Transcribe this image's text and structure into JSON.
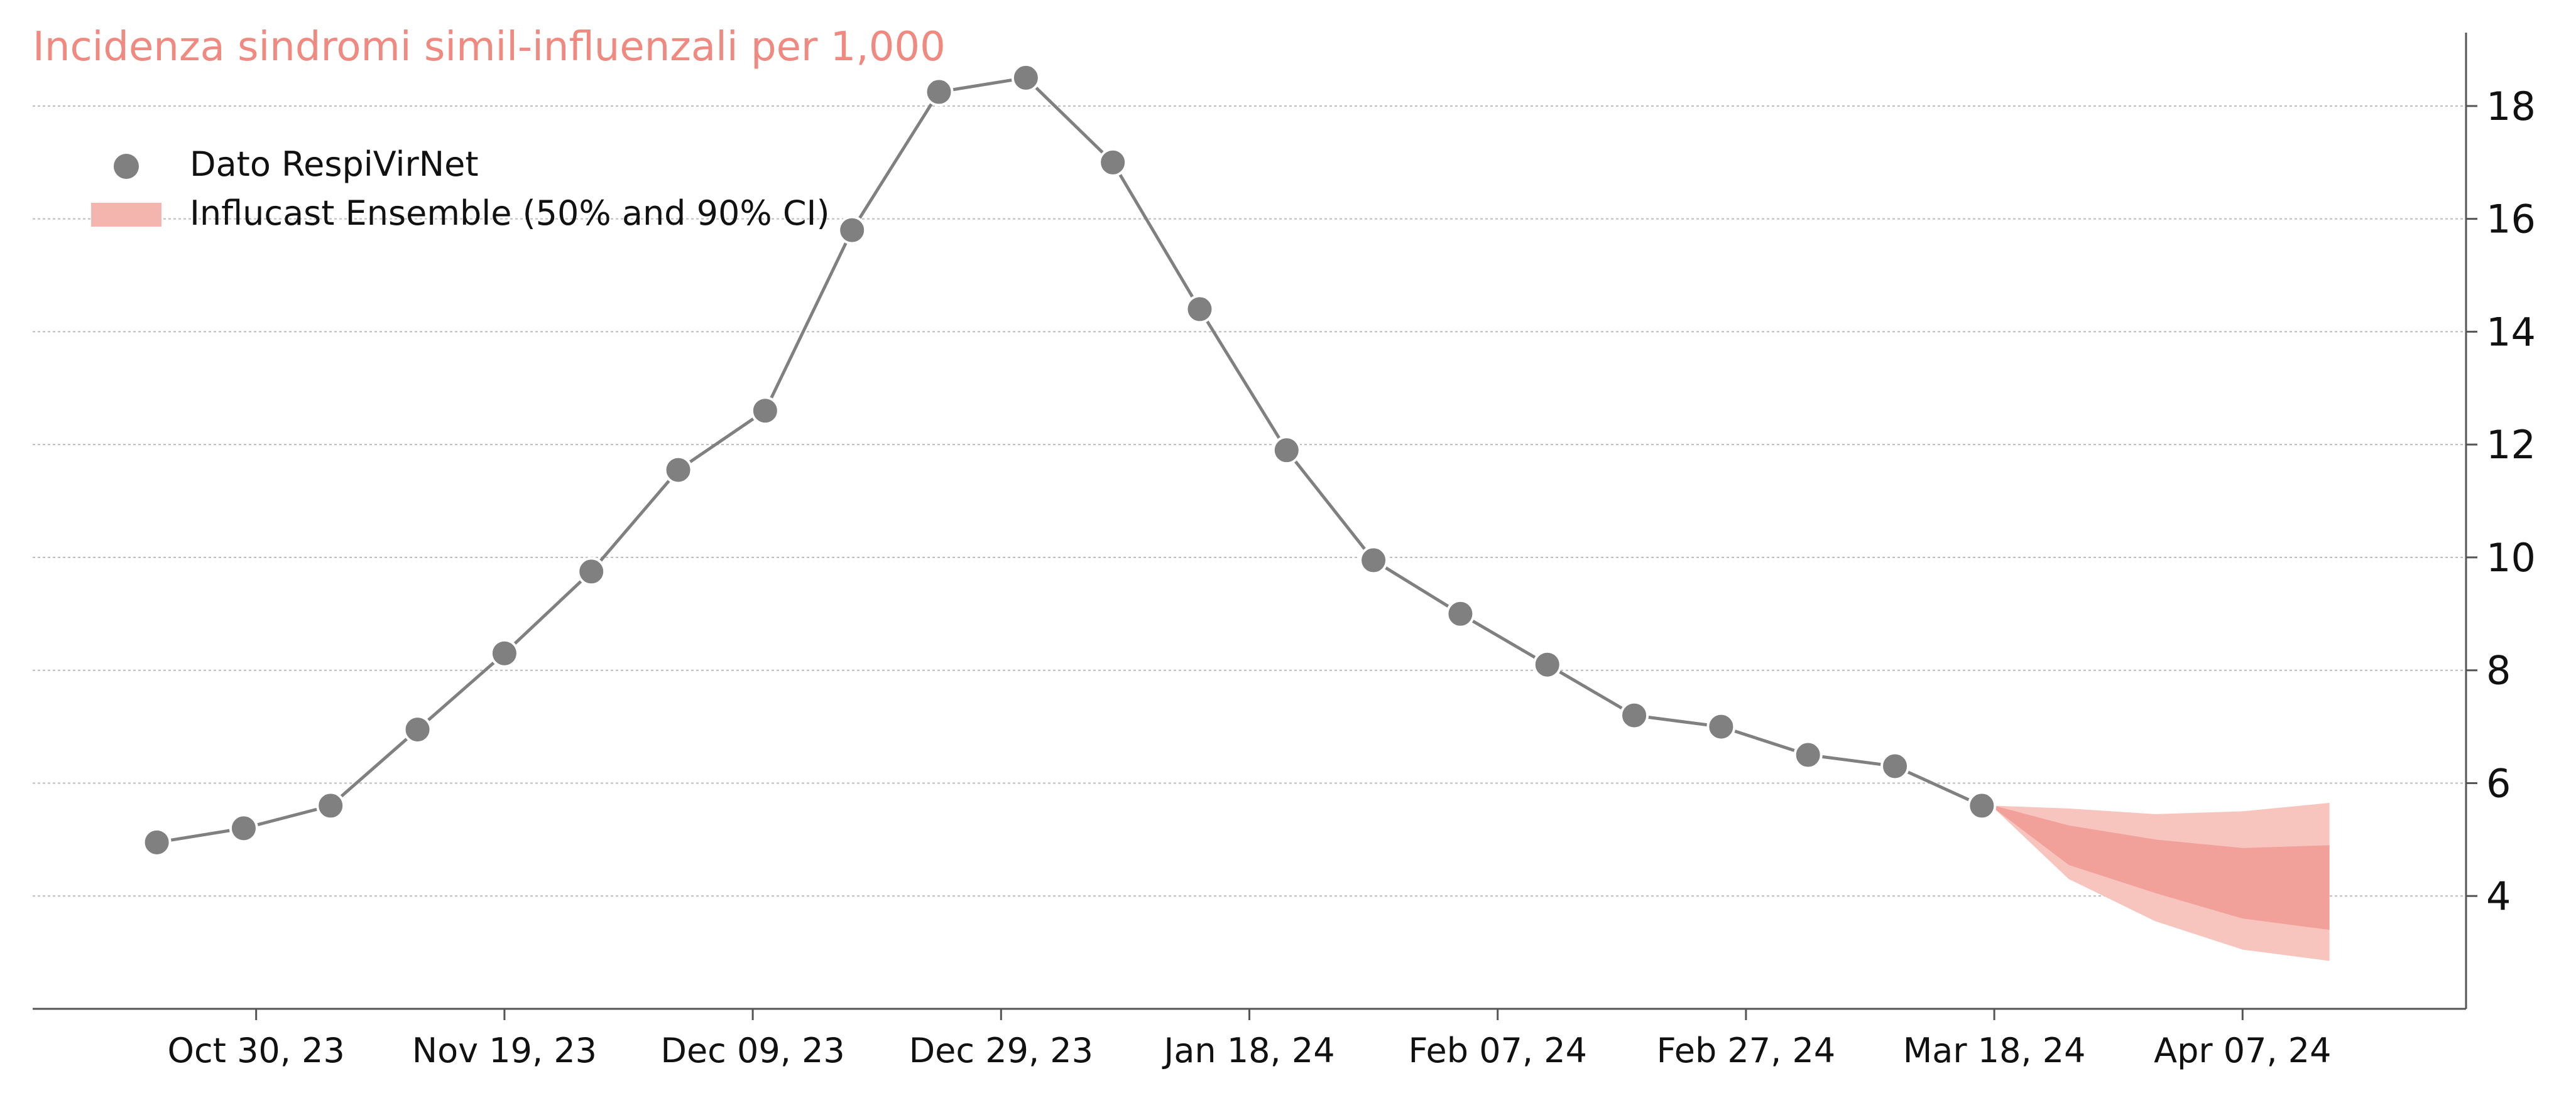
{
  "chart_data": {
    "type": "line",
    "title": "Incidenza sindromi simil-influenzali per 1,000",
    "xlabel": "",
    "ylabel": "",
    "x_ticks": [
      "Oct 30, 23",
      "Nov 19, 23",
      "Dec 09, 23",
      "Dec 29, 23",
      "Jan 18, 24",
      "Feb 07, 24",
      "Feb 27, 24",
      "Mar 18, 24",
      "Apr 07, 24"
    ],
    "y_ticks": [
      4,
      6,
      8,
      10,
      12,
      14,
      16,
      18
    ],
    "xlim": [
      "2023-10-12",
      "2024-04-25"
    ],
    "ylim": [
      2.0,
      19.3
    ],
    "y_axis_side": "right",
    "grid": "horizontal-dotted",
    "legend_position": "top-left",
    "series": [
      {
        "name": "Dato RespiVirNet",
        "kind": "points-with-line",
        "color": "#808080",
        "points": [
          {
            "x": "2023-10-22",
            "y": 4.95
          },
          {
            "x": "2023-10-29",
            "y": 5.2
          },
          {
            "x": "2023-11-05",
            "y": 5.6
          },
          {
            "x": "2023-11-12",
            "y": 6.95
          },
          {
            "x": "2023-11-19",
            "y": 8.3
          },
          {
            "x": "2023-11-26",
            "y": 9.75
          },
          {
            "x": "2023-12-03",
            "y": 11.55
          },
          {
            "x": "2023-12-10",
            "y": 12.6
          },
          {
            "x": "2023-12-17",
            "y": 15.8
          },
          {
            "x": "2023-12-24",
            "y": 18.25
          },
          {
            "x": "2023-12-31",
            "y": 18.5
          },
          {
            "x": "2024-01-07",
            "y": 17.0
          },
          {
            "x": "2024-01-14",
            "y": 14.4
          },
          {
            "x": "2024-01-21",
            "y": 11.9
          },
          {
            "x": "2024-01-28",
            "y": 9.95
          },
          {
            "x": "2024-02-04",
            "y": 9.0
          },
          {
            "x": "2024-02-11",
            "y": 8.1
          },
          {
            "x": "2024-02-18",
            "y": 7.2
          },
          {
            "x": "2024-02-25",
            "y": 7.0
          },
          {
            "x": "2024-03-03",
            "y": 6.5
          },
          {
            "x": "2024-03-10",
            "y": 6.3
          },
          {
            "x": "2024-03-17",
            "y": 5.6
          }
        ]
      },
      {
        "name": "Influcast Ensemble (50% and 90% CI)",
        "kind": "interval-bands",
        "color": "#f4887f",
        "bands": [
          {
            "x": "2024-03-18",
            "lo90": 5.55,
            "hi90": 5.6,
            "lo50": 5.55,
            "hi50": 5.6
          },
          {
            "x": "2024-03-24",
            "lo90": 4.3,
            "hi90": 5.55,
            "lo50": 4.55,
            "hi50": 5.25
          },
          {
            "x": "2024-03-31",
            "lo90": 3.55,
            "hi90": 5.45,
            "lo50": 4.05,
            "hi50": 5.0
          },
          {
            "x": "2024-04-07",
            "lo90": 3.05,
            "hi90": 5.5,
            "lo50": 3.6,
            "hi50": 4.85
          },
          {
            "x": "2024-04-14",
            "lo90": 2.85,
            "hi90": 5.65,
            "lo50": 3.4,
            "hi50": 4.9
          }
        ]
      }
    ],
    "legend": [
      {
        "label": "Dato RespiVirNet",
        "marker": "circle",
        "color": "#808080"
      },
      {
        "label": "Influcast Ensemble (50% and 90% CI)",
        "marker": "patch",
        "color": "#f4b5ae"
      }
    ],
    "colors": {
      "title": "#f08a80",
      "axis": "#555555",
      "grid": "#bbbbbb",
      "observed": "#808080",
      "band90": "#f8c4be",
      "band50": "#f2a09a"
    }
  }
}
